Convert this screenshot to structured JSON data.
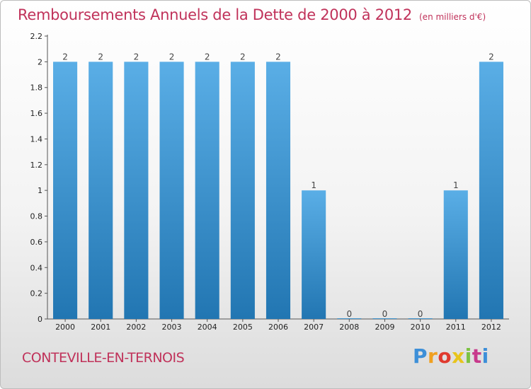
{
  "chart_data": {
    "type": "bar",
    "title": "Remboursements Annuels de la Dette de 2000 à 2012",
    "subtitle": "(en milliers d'€)",
    "categories": [
      "2000",
      "2001",
      "2002",
      "2003",
      "2004",
      "2005",
      "2006",
      "2007",
      "2008",
      "2009",
      "2010",
      "2011",
      "2012"
    ],
    "values": [
      2,
      2,
      2,
      2,
      2,
      2,
      2,
      1,
      0,
      0,
      0,
      1,
      2
    ],
    "value_labels": [
      "2",
      "2",
      "2",
      "2",
      "2",
      "2",
      "2",
      "1",
      "0",
      "0",
      "0",
      "1",
      "2"
    ],
    "ylim": [
      0,
      2.2
    ],
    "yticks": [
      0,
      0.2,
      0.4,
      0.6,
      0.8,
      1,
      1.2,
      1.4,
      1.6,
      1.8,
      2,
      2.2
    ],
    "ytick_labels": [
      "0",
      "0.2",
      "0.4",
      "0.6",
      "0.8",
      "1",
      "1.2",
      "1.4",
      "1.6",
      "1.8",
      "2",
      "2.2"
    ],
    "xlabel": "",
    "ylabel": "",
    "grid": false,
    "colors": {
      "bar_top": "#5aaee6",
      "bar_bottom": "#2276b2",
      "text": "#c0325a"
    }
  },
  "footer": {
    "place": "CONTEVILLE-EN-TERNOIS"
  },
  "logo": {
    "letters": [
      "P",
      "r",
      "o",
      "x",
      "i",
      "t",
      "i"
    ],
    "colors": [
      "#3d8fd8",
      "#f0a020",
      "#e03a2e",
      "#e8c41c",
      "#7cc242",
      "#c83a8c",
      "#3d8fd8"
    ]
  }
}
